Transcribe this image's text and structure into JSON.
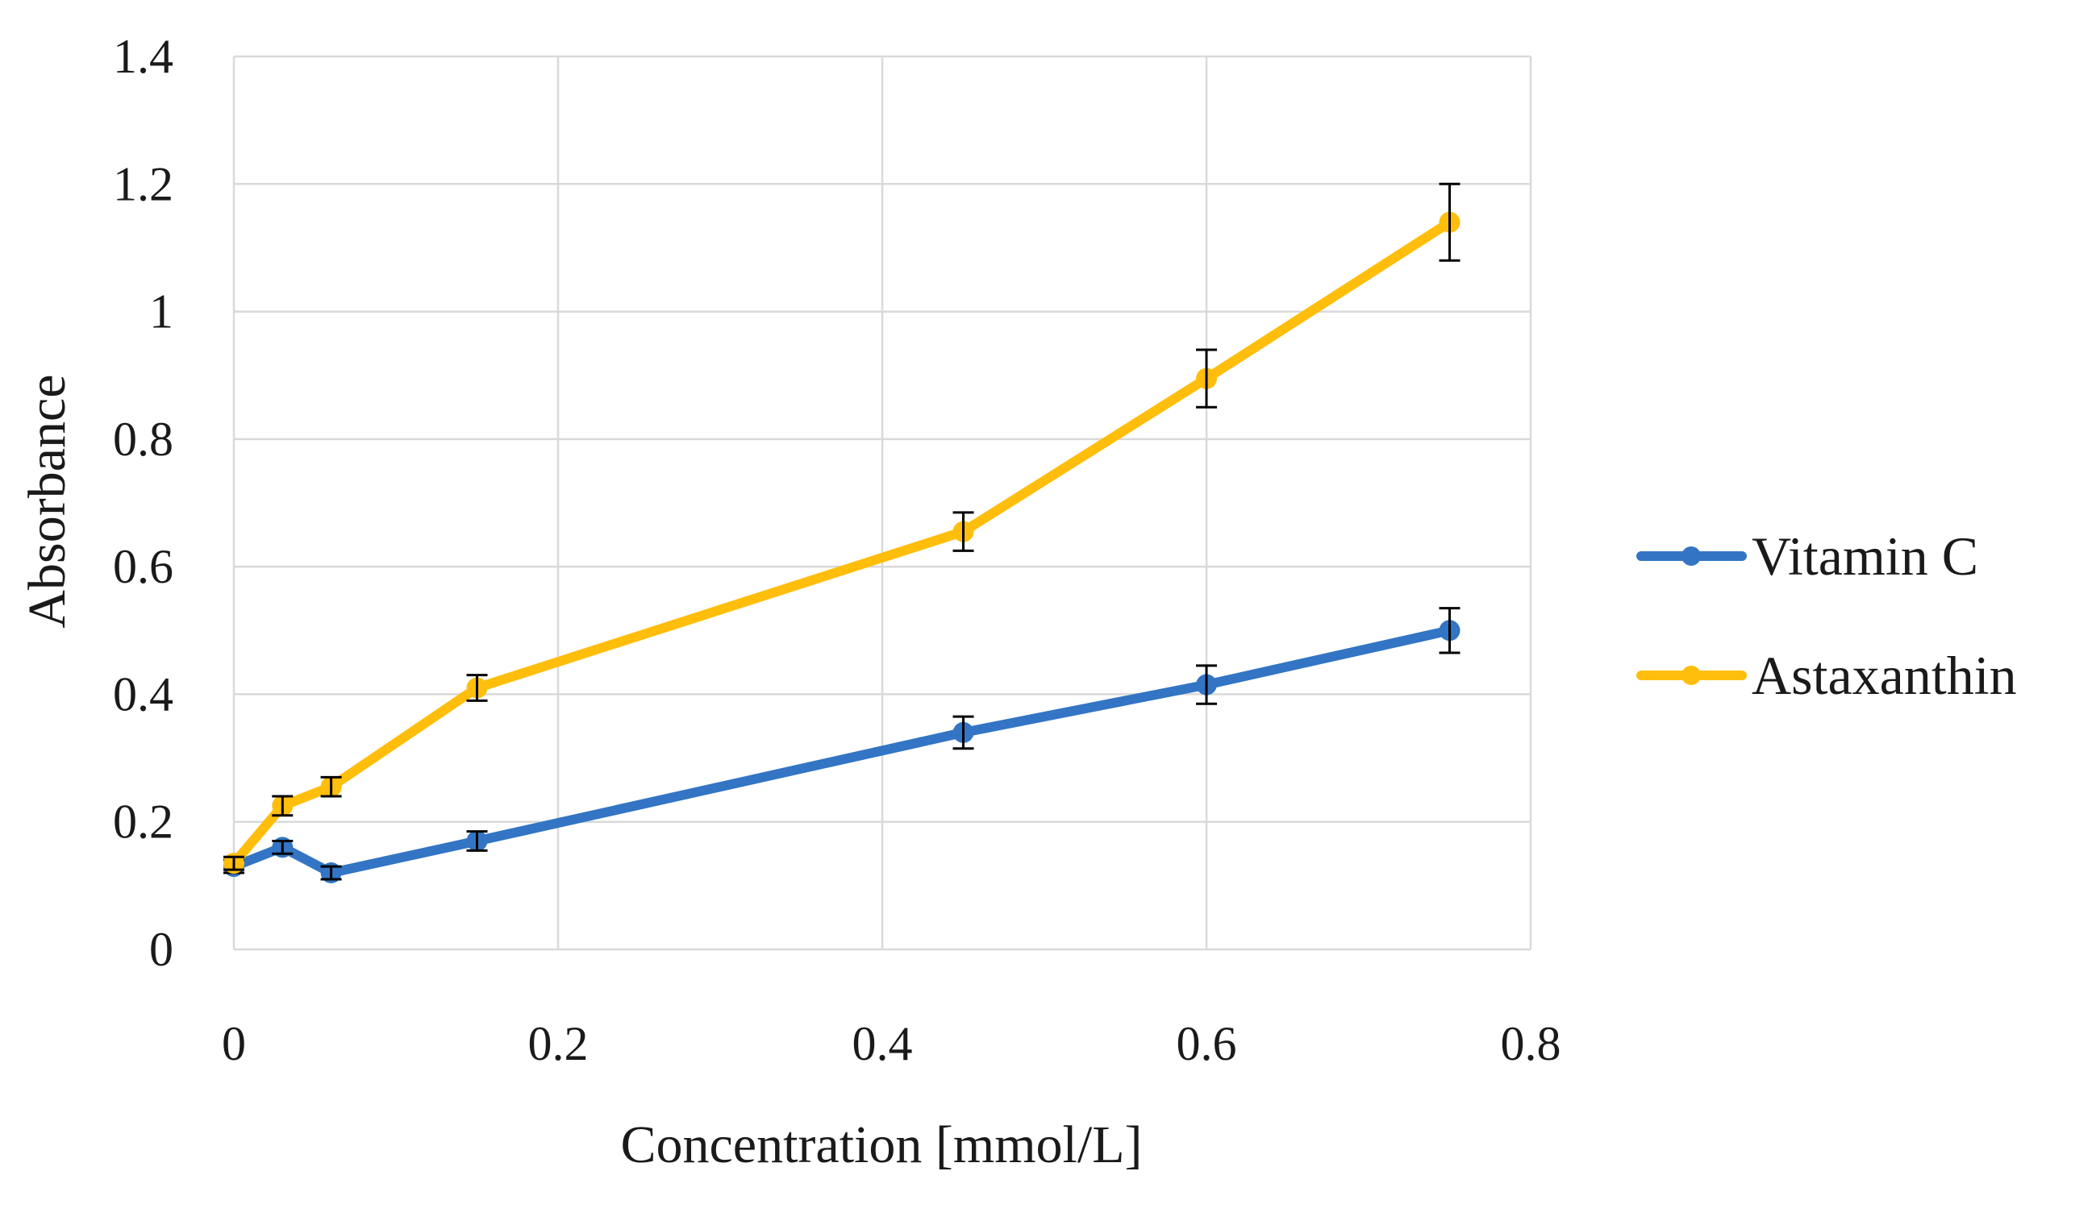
{
  "chart_data": {
    "type": "line",
    "title": "",
    "xlabel": "Concentration [mmol/L]",
    "ylabel": "Absorbance",
    "xlim": [
      0,
      0.8
    ],
    "ylim": [
      0,
      1.4
    ],
    "xticks": [
      0,
      0.2,
      0.4,
      0.6,
      0.8
    ],
    "yticks": [
      0,
      0.2,
      0.4,
      0.6,
      0.8,
      1.0,
      1.2,
      1.4
    ],
    "xtick_labels": [
      "0",
      "0.2",
      "0.4",
      "0.6",
      "0.8"
    ],
    "ytick_labels": [
      "0",
      "0.2",
      "0.4",
      "0.6",
      "0.8",
      "1",
      "1.2",
      "1.4"
    ],
    "grid": true,
    "legend_position": "right",
    "series": [
      {
        "name": "Vitamin C",
        "color": "#3375C4",
        "x": [
          0,
          0.03,
          0.06,
          0.15,
          0.45,
          0.6,
          0.75
        ],
        "y": [
          0.13,
          0.16,
          0.12,
          0.17,
          0.34,
          0.415,
          0.5
        ],
        "error": [
          0.01,
          0.01,
          0.01,
          0.015,
          0.025,
          0.03,
          0.035
        ]
      },
      {
        "name": "Astaxanthin",
        "color": "#FFBE0B",
        "x": [
          0,
          0.03,
          0.06,
          0.15,
          0.45,
          0.6,
          0.75
        ],
        "y": [
          0.135,
          0.225,
          0.255,
          0.41,
          0.655,
          0.895,
          1.14
        ],
        "error": [
          0.01,
          0.015,
          0.015,
          0.02,
          0.03,
          0.045,
          0.06
        ]
      }
    ]
  }
}
